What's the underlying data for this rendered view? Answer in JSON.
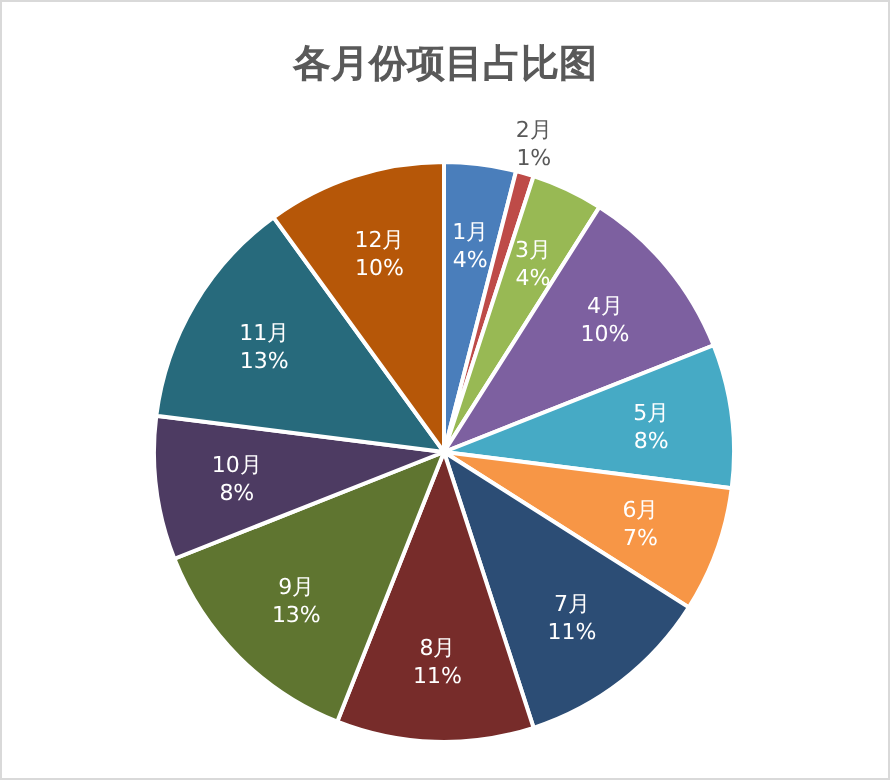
{
  "chart_data": {
    "type": "pie",
    "title": "各月份项目占比图",
    "categories": [
      "1月",
      "2月",
      "3月",
      "4月",
      "5月",
      "6月",
      "7月",
      "8月",
      "9月",
      "10月",
      "11月",
      "12月"
    ],
    "values": [
      4,
      1,
      4,
      10,
      8,
      7,
      11,
      11,
      13,
      8,
      13,
      10
    ],
    "value_labels": [
      "4%",
      "1%",
      "4%",
      "10%",
      "8%",
      "7%",
      "11%",
      "11%",
      "13%",
      "8%",
      "13%",
      "10%"
    ],
    "colors": [
      "#4a7ebb",
      "#be4b48",
      "#98b954",
      "#7d60a0",
      "#46aac5",
      "#f79646",
      "#2c4d75",
      "#772c2a",
      "#5f7530",
      "#4d3b62",
      "#276a7c",
      "#b65708"
    ],
    "legend": false
  }
}
